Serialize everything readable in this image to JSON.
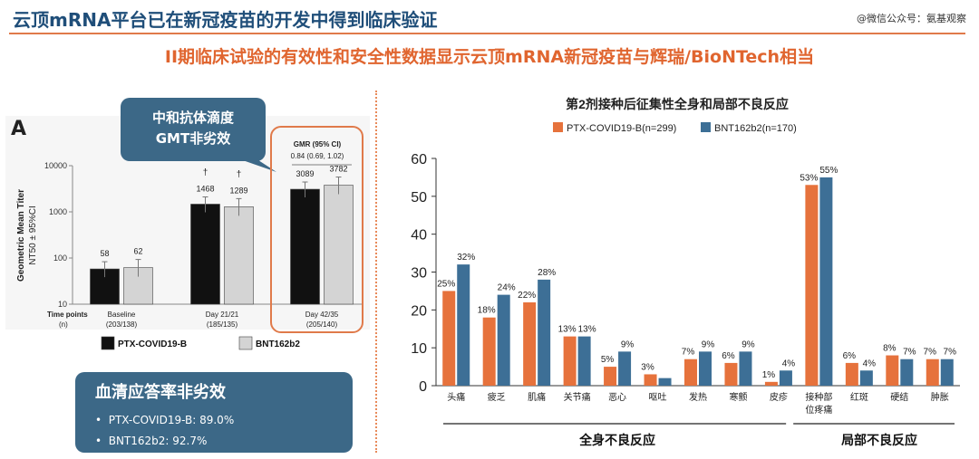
{
  "header": {
    "title": "云顶mRNA平台已在新冠疫苗的开发中得到临床验证",
    "watermark": "@微信公众号：氨基观察",
    "subtitle": "II期临床试验的有效性和安全性数据显示云顶mRNA新冠疫苗与辉瑞/BioNTech相当"
  },
  "colors": {
    "title_blue": "#1f4e79",
    "orange": "#e0652f",
    "blue_bar": "#3d6f96",
    "orange_bar": "#e6723c",
    "callout_bg": "#3c6887"
  },
  "left": {
    "panel_label": "A",
    "callout_line1": "中和抗体滴度",
    "callout_line2": "GMT非劣效",
    "gmr_label": "GMR (95% CI)",
    "gmr_value": "0.84 (0.69, 1.02)",
    "serum_title": "血清应答率非劣效",
    "serum_rows": [
      "PTX-COVID19-B: 89.0%",
      "BNT162b2: 92.7%"
    ]
  },
  "chart_data": [
    {
      "type": "bar",
      "ylabel": "Geometric Mean Titer",
      "ylabel2": "NT50 ± 95%CI",
      "yscale": "log",
      "ylim": [
        10,
        10000
      ],
      "yticks": [
        "10000",
        "1000",
        "100",
        "10"
      ],
      "x_header": [
        "Time points",
        "(n)"
      ],
      "categories": [
        {
          "name": "Baseline",
          "n": "(203/138)"
        },
        {
          "name": "Day 21/21",
          "n": "(185/135)"
        },
        {
          "name": "Day 42/35",
          "n": "(205/140)"
        }
      ],
      "series": [
        {
          "name": "PTX-COVID19-B",
          "color": "#111111",
          "values": [
            58,
            1468,
            3089
          ],
          "labels": [
            "58",
            "1468",
            "3089"
          ]
        },
        {
          "name": "BNT162b2",
          "color": "#d4d4d4",
          "values": [
            62,
            1289,
            3782
          ],
          "labels": [
            "62",
            "1289",
            "3782"
          ]
        }
      ],
      "daggers": [
        "†",
        "†"
      ],
      "legend_position": "bottom"
    },
    {
      "type": "bar",
      "title": "第2剂接种后征集性全身和局部不良反应",
      "ylim": [
        0,
        60
      ],
      "yticks": [
        "0",
        "10",
        "20",
        "30",
        "40",
        "50",
        "60"
      ],
      "categories": [
        "头痛",
        "疲乏",
        "肌痛",
        "关节痛",
        "恶心",
        "呕吐",
        "发热",
        "寒颤",
        "皮疹",
        "接种部位疼痛",
        "红斑",
        "硬结",
        "肿胀"
      ],
      "category_lines": [
        [
          "头痛"
        ],
        [
          "疲乏"
        ],
        [
          "肌痛"
        ],
        [
          "关节痛"
        ],
        [
          "恶心"
        ],
        [
          "呕吐"
        ],
        [
          "发热"
        ],
        [
          "寒颤"
        ],
        [
          "皮疹"
        ],
        [
          "接种部",
          "位疼痛"
        ],
        [
          "红斑"
        ],
        [
          "硬结"
        ],
        [
          "肿胀"
        ]
      ],
      "series": [
        {
          "name": "PTX-COVID19-B(n=299)",
          "color": "#e6723c",
          "values": [
            25,
            18,
            22,
            13,
            5,
            3,
            7,
            6,
            1,
            53,
            6,
            8,
            7
          ],
          "labels": [
            "25%",
            "18%",
            "22%",
            "13%",
            "5%",
            "3%",
            "7%",
            "6%",
            "1%",
            "53%",
            "6%",
            "8%",
            "7%"
          ]
        },
        {
          "name": "BNT162b2(n=170)",
          "color": "#3d6f96",
          "values": [
            32,
            24,
            28,
            13,
            9,
            2,
            9,
            9,
            4,
            55,
            4,
            7,
            7
          ],
          "labels": [
            "32%",
            "24%",
            "28%",
            "13%",
            "9%",
            "",
            "9%",
            "9%",
            "4%",
            "55%",
            "4%",
            "7%",
            "7%"
          ]
        }
      ],
      "groups": [
        {
          "label": "全身不良反应"
        },
        {
          "label": "局部不良反应"
        }
      ],
      "legend_position": "top"
    }
  ]
}
